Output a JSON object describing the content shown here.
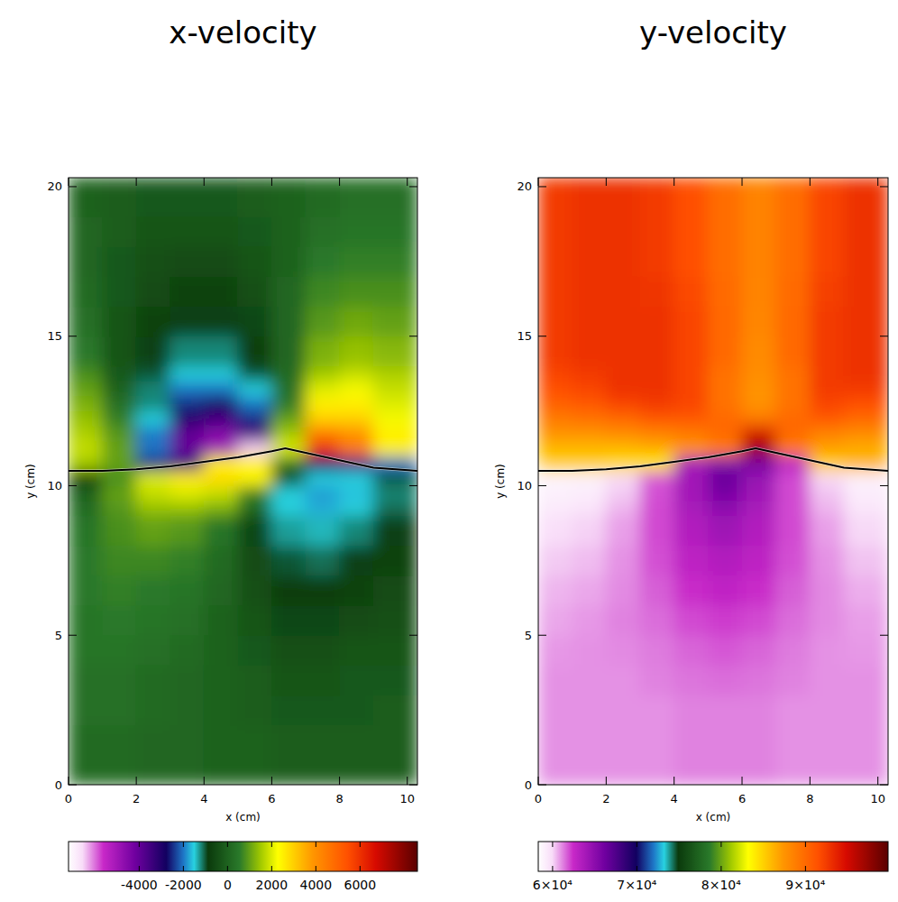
{
  "chart_data": [
    {
      "type": "heatmap",
      "title": "x-velocity",
      "x_label": "x (cm)",
      "y_label": "y (cm)",
      "xlim": [
        0,
        10.3
      ],
      "ylim": [
        0,
        20.3
      ],
      "xticks": [
        0,
        2,
        4,
        6,
        8,
        10
      ],
      "yticks": [
        0,
        5,
        10,
        15,
        20
      ],
      "x_edges": [
        0,
        1,
        2,
        3,
        4,
        5,
        6,
        7,
        8,
        9,
        10.3
      ],
      "y_edges": [
        0,
        1,
        2,
        3,
        4,
        5,
        6,
        7,
        8,
        9,
        9.5,
        10,
        10.5,
        11,
        11.5,
        12,
        12.5,
        13,
        13.5,
        14,
        15,
        16,
        17,
        18,
        19,
        20.3
      ],
      "cells": [
        [
          200,
          200,
          100,
          100,
          0,
          0,
          -100,
          -100,
          -100,
          -100
        ],
        [
          200,
          200,
          100,
          100,
          0,
          0,
          -100,
          -100,
          -100,
          -100
        ],
        [
          300,
          300,
          200,
          100,
          0,
          -100,
          -200,
          -200,
          -200,
          -100
        ],
        [
          300,
          300,
          200,
          100,
          0,
          -100,
          -300,
          -300,
          -200,
          -200
        ],
        [
          400,
          400,
          300,
          200,
          0,
          -200,
          -400,
          -400,
          -300,
          -300
        ],
        [
          400,
          500,
          400,
          300,
          0,
          -300,
          -600,
          -600,
          -500,
          -400
        ],
        [
          500,
          600,
          500,
          400,
          100,
          -400,
          -800,
          -800,
          -700,
          -500
        ],
        [
          500,
          700,
          700,
          600,
          200,
          -500,
          -1000,
          -1100,
          -900,
          -700
        ],
        [
          400,
          800,
          1000,
          900,
          400,
          -600,
          -1300,
          -1400,
          -1200,
          -900
        ],
        [
          200,
          900,
          1400,
          1400,
          1200,
          200,
          -1500,
          -1700,
          -1500,
          -1100
        ],
        [
          0,
          1000,
          1800,
          2000,
          1800,
          600,
          -1500,
          -1800,
          -1600,
          -1200
        ],
        [
          -800,
          800,
          2000,
          2600,
          2800,
          2400,
          -500,
          -1500,
          -1500,
          -1000
        ],
        [
          1500,
          1000,
          -2500,
          -3500,
          2500,
          2500,
          500,
          -3000,
          -3500,
          -2000
        ],
        [
          1800,
          1000,
          -2000,
          -4000,
          -5000,
          -6500,
          2000,
          6000,
          4500,
          2500
        ],
        [
          1600,
          900,
          -2000,
          -4000,
          -4500,
          -3500,
          1500,
          4500,
          4000,
          2500
        ],
        [
          1400,
          600,
          -1500,
          -3000,
          -3500,
          -2500,
          1000,
          3000,
          3000,
          2200
        ],
        [
          1200,
          300,
          -1200,
          -2500,
          -2800,
          -2000,
          500,
          2500,
          2500,
          2000
        ],
        [
          1000,
          0,
          -1200,
          -2000,
          -2000,
          -1500,
          300,
          2000,
          2200,
          1800
        ],
        [
          800,
          -200,
          -1000,
          -1500,
          -1500,
          -1000,
          200,
          1500,
          1800,
          1600
        ],
        [
          500,
          -300,
          -900,
          -1200,
          -1200,
          -800,
          100,
          1200,
          1400,
          1300
        ],
        [
          300,
          -300,
          -700,
          -900,
          -900,
          -600,
          100,
          900,
          1100,
          1000
        ],
        [
          200,
          -200,
          -500,
          -700,
          -700,
          -400,
          100,
          700,
          800,
          800
        ],
        [
          100,
          -200,
          -400,
          -500,
          -500,
          -300,
          0,
          500,
          600,
          600
        ],
        [
          100,
          -100,
          -300,
          -300,
          -300,
          -200,
          0,
          300,
          400,
          400
        ],
        [
          0,
          -100,
          -200,
          -200,
          -200,
          -100,
          0,
          200,
          300,
          300
        ]
      ],
      "front": {
        "x": [
          0,
          1,
          2,
          3,
          4,
          5,
          6,
          6.4,
          7,
          8,
          9,
          10.3
        ],
        "y": [
          10.5,
          10.5,
          10.55,
          10.65,
          10.8,
          10.95,
          11.15,
          11.25,
          11.1,
          10.85,
          10.6,
          10.5
        ]
      },
      "colorbar_range": [
        -7200,
        8600
      ],
      "colorbar_ticks": [
        -4000,
        -2000,
        0,
        2000,
        4000,
        6000
      ]
    },
    {
      "type": "heatmap",
      "title": "y-velocity",
      "x_label": "x (cm)",
      "y_label": "y (cm)",
      "xlim": [
        0,
        10.3
      ],
      "ylim": [
        0,
        20.3
      ],
      "xticks": [
        0,
        2,
        4,
        6,
        8,
        10
      ],
      "yticks": [
        0,
        5,
        10,
        15,
        20
      ],
      "x_edges": [
        0,
        1,
        2,
        3,
        4,
        5,
        6,
        7,
        8,
        9,
        10.3
      ],
      "y_edges": [
        0,
        1,
        2,
        3,
        4,
        5,
        6,
        7,
        8,
        9,
        9.5,
        10,
        10.5,
        11,
        11.5,
        12,
        12.5,
        13,
        13.5,
        14,
        15,
        16,
        17,
        18,
        19,
        20.3
      ],
      "cells": [
        [
          61000,
          61000,
          61000,
          61000,
          61200,
          61200,
          61200,
          61000,
          61000,
          61000
        ],
        [
          61000,
          61000,
          61000,
          61000,
          61200,
          61200,
          61200,
          61000,
          61000,
          61000
        ],
        [
          61000,
          61000,
          61000,
          61000,
          61200,
          61200,
          61200,
          61000,
          61000,
          61000
        ],
        [
          61000,
          61000,
          61000,
          61200,
          61400,
          61500,
          61400,
          61200,
          61000,
          61000
        ],
        [
          60900,
          61000,
          61100,
          61300,
          61600,
          61800,
          61600,
          61300,
          61000,
          60900
        ],
        [
          60700,
          60900,
          61200,
          61500,
          62000,
          62200,
          62000,
          61500,
          61100,
          60800
        ],
        [
          60500,
          60700,
          61100,
          61700,
          62400,
          62800,
          62400,
          61700,
          61100,
          60600
        ],
        [
          60200,
          60400,
          61000,
          61900,
          62900,
          63400,
          62900,
          61900,
          61000,
          60300
        ],
        [
          59800,
          60100,
          60800,
          62000,
          63400,
          64200,
          63400,
          62000,
          60800,
          60000
        ],
        [
          59300,
          59600,
          60500,
          62000,
          63800,
          65000,
          63800,
          62000,
          60500,
          59500
        ],
        [
          59000,
          59200,
          60200,
          61900,
          64000,
          65800,
          64200,
          62000,
          60300,
          59200
        ],
        [
          58800,
          58900,
          60000,
          61800,
          64000,
          66500,
          64500,
          62000,
          60000,
          59000
        ],
        [
          85000,
          85000,
          84500,
          84000,
          64000,
          65500,
          66000,
          63000,
          85000,
          86000
        ],
        [
          86000,
          86000,
          86000,
          86500,
          87500,
          89000,
          97000,
          89000,
          87000,
          86500
        ],
        [
          87500,
          87500,
          88000,
          88500,
          89000,
          90000,
          95000,
          90000,
          88500,
          88000
        ],
        [
          89000,
          89500,
          90000,
          91000,
          91000,
          90000,
          89000,
          90000,
          91000,
          90000
        ],
        [
          90500,
          91000,
          92000,
          92500,
          92000,
          89500,
          87500,
          89500,
          92000,
          91500
        ],
        [
          91500,
          92000,
          93000,
          93000,
          92000,
          89500,
          87500,
          89500,
          92500,
          92500
        ],
        [
          92000,
          92500,
          93000,
          93000,
          92000,
          89500,
          87800,
          89500,
          92500,
          93000
        ],
        [
          92500,
          93000,
          93000,
          93000,
          92000,
          90000,
          88000,
          90000,
          92500,
          93000
        ],
        [
          92500,
          93000,
          93000,
          93000,
          92000,
          90000,
          88300,
          90000,
          92500,
          93000
        ],
        [
          92500,
          93000,
          93000,
          92800,
          91800,
          89900,
          88400,
          89900,
          92300,
          93000
        ],
        [
          92500,
          93000,
          93000,
          92500,
          91500,
          89800,
          88500,
          89800,
          92000,
          93000
        ],
        [
          92500,
          93000,
          93000,
          92500,
          91500,
          89800,
          88500,
          89800,
          92000,
          93000
        ],
        [
          92500,
          93000,
          93000,
          92500,
          91500,
          89800,
          88500,
          89800,
          92000,
          93000
        ]
      ],
      "front": {
        "x": [
          0,
          1,
          2,
          3,
          4,
          5,
          6,
          6.4,
          7,
          8,
          9,
          10.3
        ],
        "y": [
          10.5,
          10.5,
          10.55,
          10.65,
          10.8,
          10.95,
          11.15,
          11.25,
          11.1,
          10.85,
          10.6,
          10.5
        ]
      },
      "colorbar_range": [
        58300,
        99800
      ],
      "colorbar_ticks": [
        {
          "value": 60000,
          "label": "6×10⁴"
        },
        {
          "value": 70000,
          "label": "7×10⁴"
        },
        {
          "value": 80000,
          "label": "8×10⁴"
        },
        {
          "value": 90000,
          "label": "9×10⁴"
        }
      ]
    }
  ]
}
